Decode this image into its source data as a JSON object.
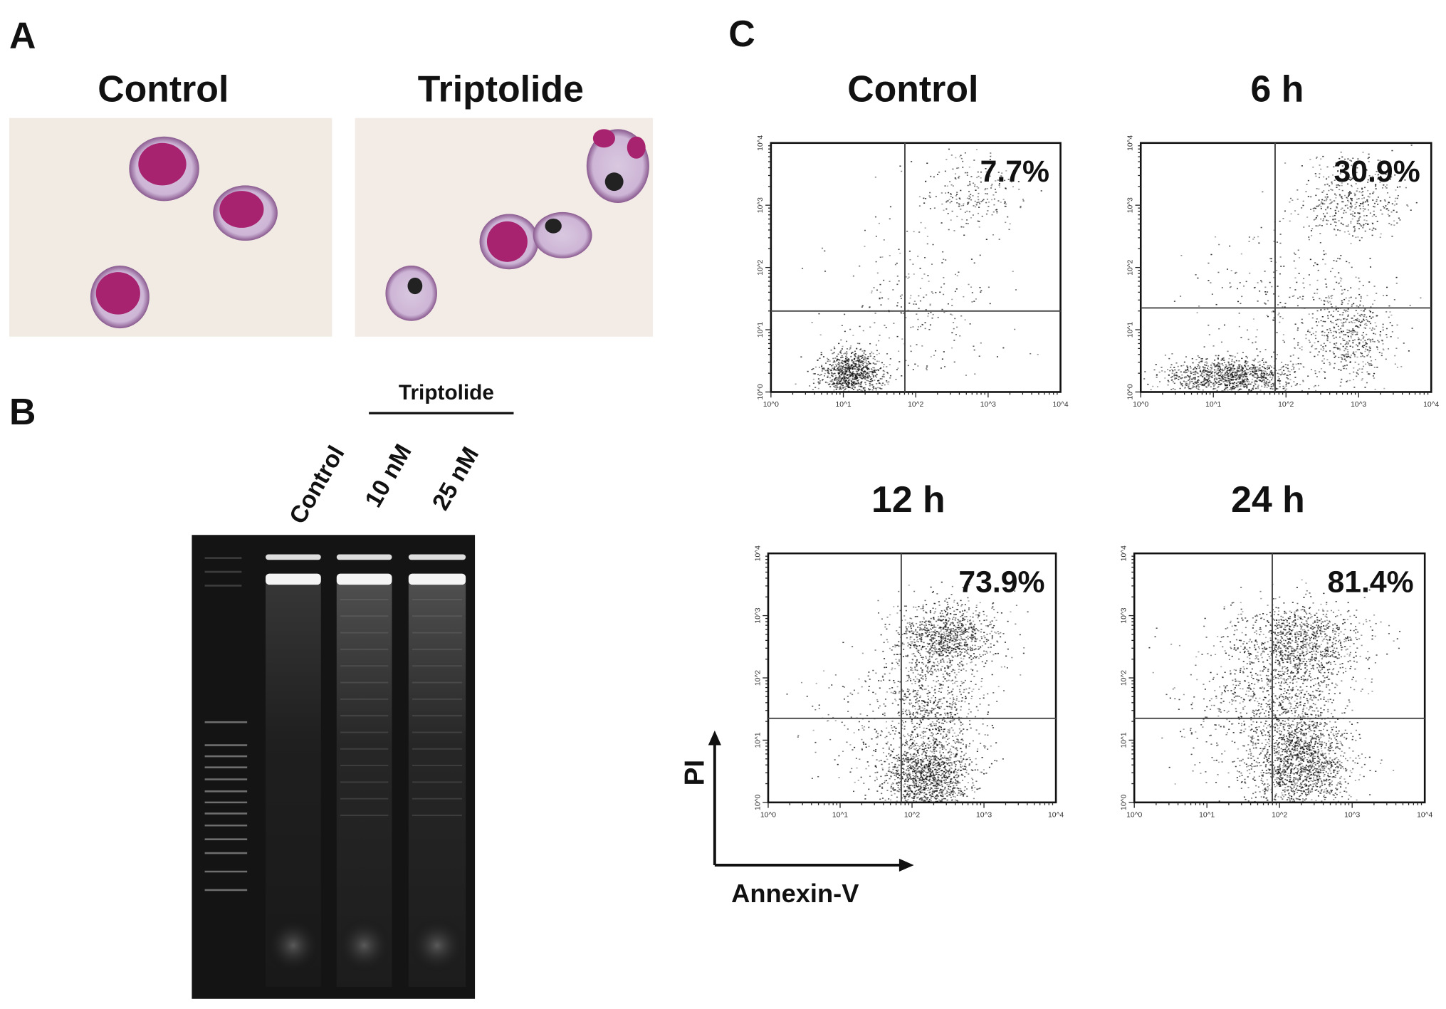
{
  "panels": {
    "A": {
      "label": "A",
      "images": [
        {
          "title": "Control"
        },
        {
          "title": "Triptolide"
        }
      ]
    },
    "B": {
      "label": "B",
      "group_label": "Triptolide",
      "lanes": [
        "Control",
        "10 nM",
        "25 nM"
      ]
    },
    "C": {
      "label": "C",
      "y_axis_label": "PI",
      "x_axis_label": "Annexin-V"
    }
  },
  "chart_data": {
    "type": "scatter",
    "xlabel": "Annexin-V",
    "ylabel": "PI",
    "x_scale": "log",
    "y_scale": "log",
    "xlim": [
      1,
      10000
    ],
    "ylim": [
      1,
      10000
    ],
    "tick_labels": [
      "10^0",
      "10^1",
      "10^2",
      "10^3",
      "10^4"
    ],
    "plots": [
      {
        "title": "Control",
        "annotation": "7.7%"
      },
      {
        "title": "6 h",
        "annotation": "30.9%"
      },
      {
        "title": "12 h",
        "annotation": "73.9%"
      },
      {
        "title": "24 h",
        "annotation": "81.4%"
      }
    ]
  }
}
